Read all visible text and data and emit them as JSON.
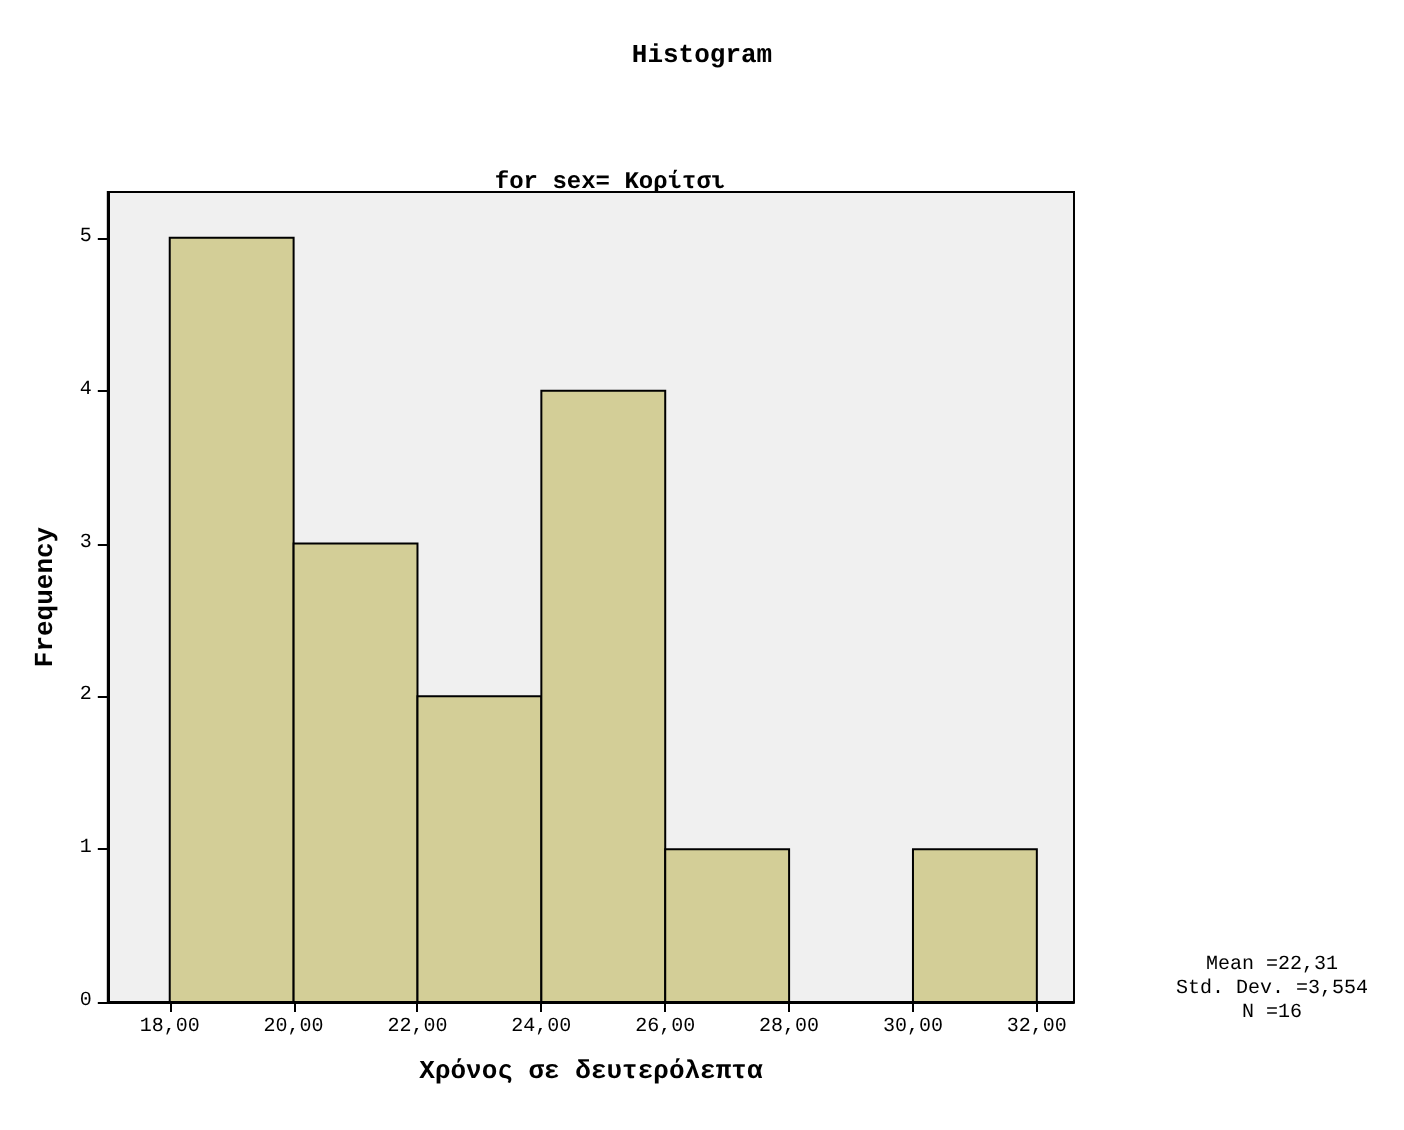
{
  "chart_data": {
    "type": "histogram",
    "title": "Histogram",
    "subtitle": "for sex= Κορίτσι",
    "xlabel": "Χρόνος σε δευτερόλεπτα",
    "ylabel": "Frequency",
    "bins": [
      18,
      20,
      22,
      24,
      26,
      28,
      30,
      32
    ],
    "values": [
      5,
      3,
      2,
      4,
      1,
      0,
      1
    ],
    "color": "#d3ce97",
    "xlim": [
      17,
      32.6
    ],
    "xticks": [
      {
        "value": 18,
        "label": "18,00"
      },
      {
        "value": 20,
        "label": "20,00"
      },
      {
        "value": 22,
        "label": "22,00"
      },
      {
        "value": 24,
        "label": "24,00"
      },
      {
        "value": 26,
        "label": "26,00"
      },
      {
        "value": 28,
        "label": "28,00"
      },
      {
        "value": 30,
        "label": "30,00"
      },
      {
        "value": 32,
        "label": "32,00"
      }
    ],
    "ylim": [
      0,
      5.3
    ],
    "yticks": [
      0,
      1,
      2,
      3,
      4,
      5
    ],
    "grid": false,
    "annotations": [
      "Mean =22,31",
      "Std. Dev. =3,554",
      "N =16"
    ]
  }
}
